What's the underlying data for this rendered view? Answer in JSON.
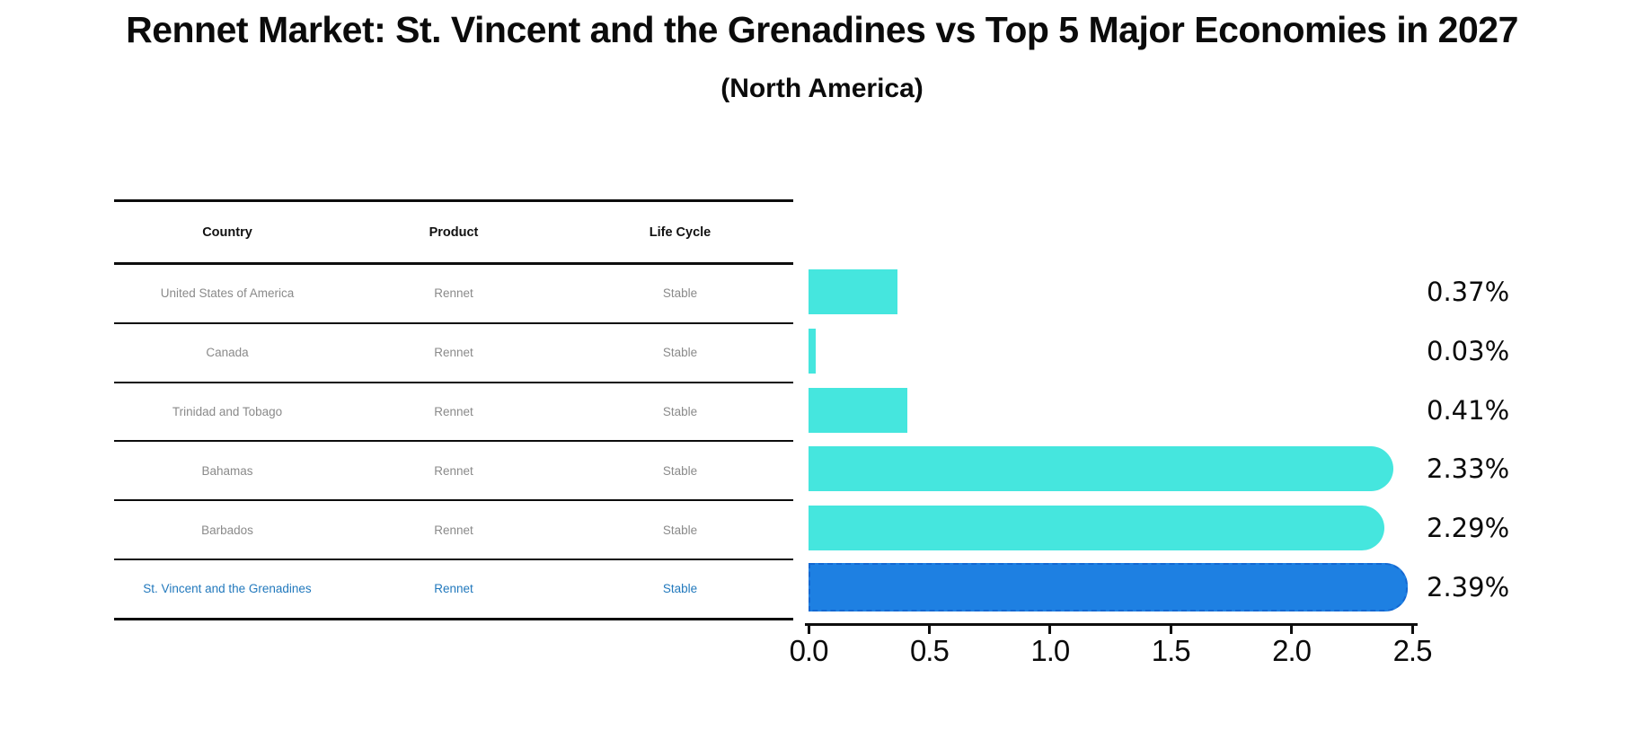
{
  "title": "Rennet Market: St. Vincent and the Grenadines vs Top 5 Major Economies in 2027",
  "subtitle": "(North America)",
  "table": {
    "headers": [
      "Country",
      "Product",
      "Life Cycle"
    ],
    "rows": [
      {
        "country": "United States of America",
        "product": "Rennet",
        "life_cycle": "Stable",
        "highlighted": false
      },
      {
        "country": "Canada",
        "product": "Rennet",
        "life_cycle": "Stable",
        "highlighted": false
      },
      {
        "country": "Trinidad and Tobago",
        "product": "Rennet",
        "life_cycle": "Stable",
        "highlighted": false
      },
      {
        "country": "Bahamas",
        "product": "Rennet",
        "life_cycle": "Stable",
        "highlighted": false
      },
      {
        "country": "Barbados",
        "product": "Rennet",
        "life_cycle": "Stable",
        "highlighted": false
      },
      {
        "country": "St. Vincent and the Grenadines",
        "product": "Rennet",
        "life_cycle": "Stable",
        "highlighted": true
      }
    ]
  },
  "chart_data": {
    "type": "bar",
    "orientation": "horizontal",
    "title": "Rennet Market: St. Vincent and the Grenadines vs Top 5 Major Economies in 2027 (North America)",
    "categories": [
      "United States of America",
      "Canada",
      "Trinidad and Tobago",
      "Bahamas",
      "Barbados",
      "St. Vincent and the Grenadines"
    ],
    "values": [
      0.37,
      0.03,
      0.41,
      2.33,
      2.29,
      2.39
    ],
    "value_labels": [
      "0.37%",
      "0.03%",
      "0.41%",
      "2.33%",
      "2.29%",
      "2.39%"
    ],
    "xlabel": "",
    "ylabel": "",
    "xlim": [
      0,
      2.5
    ],
    "x_ticks": [
      "0.0",
      "0.5",
      "1.0",
      "1.5",
      "2.0",
      "2.5"
    ],
    "grid": false,
    "legend": false,
    "highlight_index": 5,
    "bar_color": "#45e6de",
    "highlight_bar_color": "#1e80e2",
    "highlight_bar_edge_color": "#1468d2",
    "highlight_text_color": "#2279bd"
  }
}
